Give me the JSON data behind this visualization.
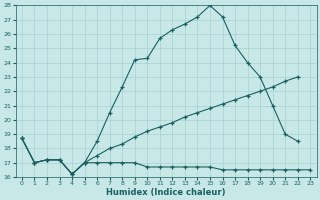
{
  "xlabel": "Humidex (Indice chaleur)",
  "bg_color": "#c8e8e8",
  "grid_color": "#a8d0d0",
  "line_color": "#1a6060",
  "xlim": [
    -0.5,
    23.5
  ],
  "ylim": [
    16,
    28
  ],
  "xticks": [
    0,
    1,
    2,
    3,
    4,
    5,
    6,
    7,
    8,
    9,
    10,
    11,
    12,
    13,
    14,
    15,
    16,
    17,
    18,
    19,
    20,
    21,
    22,
    23
  ],
  "yticks": [
    16,
    17,
    18,
    19,
    20,
    21,
    22,
    23,
    24,
    25,
    26,
    27,
    28
  ],
  "line1_x": [
    0,
    1,
    2,
    3,
    4,
    5,
    6,
    7,
    8,
    9,
    10,
    11,
    12,
    13,
    14,
    15,
    16,
    17,
    18,
    19,
    20,
    21,
    22,
    23
  ],
  "line1_y": [
    18.7,
    17.0,
    17.2,
    17.2,
    16.2,
    17.0,
    18.5,
    20.5,
    22.3,
    24.2,
    24.3,
    25.7,
    26.3,
    26.7,
    27.2,
    28.0,
    27.2,
    25.2,
    24.0,
    23.0,
    21.0,
    19.0,
    18.5,
    null
  ],
  "line2_x": [
    0,
    1,
    2,
    3,
    4,
    5,
    6,
    7,
    8,
    9,
    10,
    11,
    12,
    13,
    14,
    15,
    16,
    17,
    18,
    19,
    20,
    21,
    22,
    23
  ],
  "line2_y": [
    18.7,
    17.0,
    17.2,
    17.2,
    16.2,
    17.0,
    17.5,
    18.0,
    18.3,
    18.8,
    19.2,
    19.5,
    19.8,
    20.2,
    20.5,
    20.8,
    21.1,
    21.4,
    21.7,
    22.0,
    22.3,
    22.7,
    23.0,
    null
  ],
  "line3_x": [
    0,
    1,
    2,
    3,
    4,
    5,
    6,
    7,
    8,
    9,
    10,
    11,
    12,
    13,
    14,
    15,
    16,
    17,
    18,
    19,
    20,
    21,
    22,
    23
  ],
  "line3_y": [
    18.7,
    17.0,
    17.2,
    17.2,
    16.2,
    17.0,
    17.0,
    17.0,
    17.0,
    17.0,
    16.7,
    16.7,
    16.7,
    16.7,
    16.7,
    16.7,
    16.5,
    16.5,
    16.5,
    16.5,
    16.5,
    16.5,
    16.5,
    16.5
  ]
}
